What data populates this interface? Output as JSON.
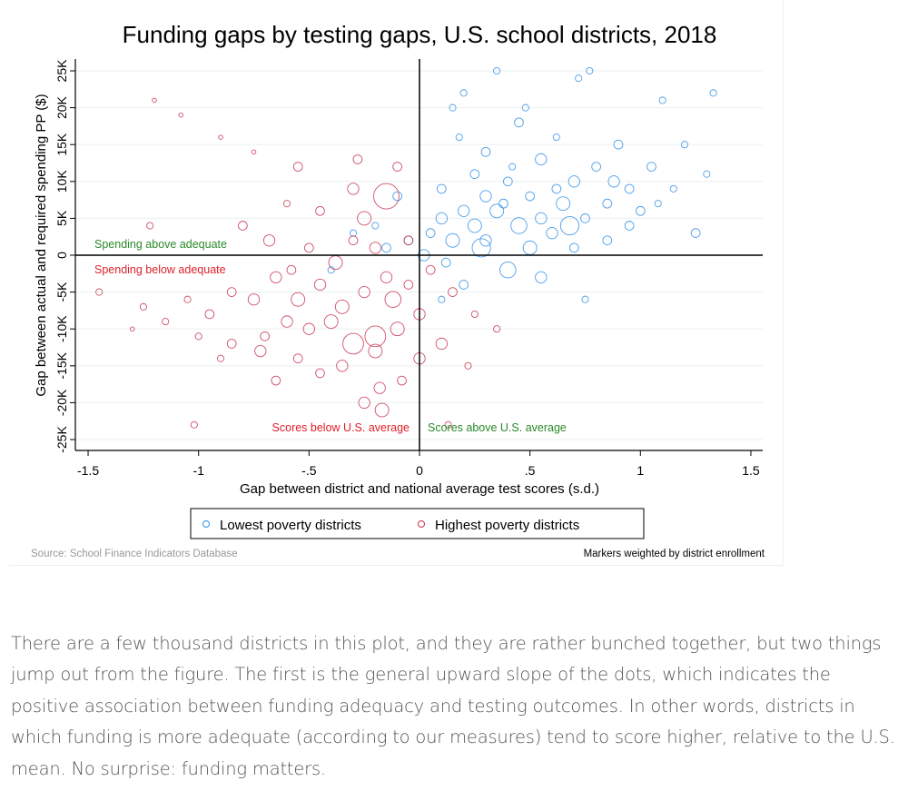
{
  "chart_data": {
    "type": "scatter",
    "title": "Funding gaps by testing gaps, U.S. school districts, 2018",
    "xlabel": "Gap between district and national average test scores (s.d.)",
    "ylabel": "Gap between actual and required spending PP ($)",
    "xlim": [
      -1.55,
      1.55
    ],
    "ylim": [
      -26500,
      26500
    ],
    "xticks": [
      -1.5,
      -1,
      -0.5,
      0,
      0.5,
      1,
      1.5
    ],
    "xtick_labels": [
      "-1.5",
      "-1",
      "-.5",
      "0",
      ".5",
      "1",
      "1.5"
    ],
    "yticks": [
      -25000,
      -20000,
      -15000,
      -10000,
      -5000,
      0,
      5000,
      10000,
      15000,
      20000,
      25000
    ],
    "ytick_labels": [
      "-25K",
      "-20K",
      "-15K",
      "-10K",
      "-5K",
      "0",
      "5K",
      "10K",
      "15K",
      "20K",
      "25K"
    ],
    "grid": "horizontal",
    "legend_position": "bottom",
    "reference_lines": {
      "x": 0,
      "y": 0
    },
    "annotations": {
      "above": "Spending above adequate",
      "below": "Spending below adequate",
      "scores_below": "Scores below U.S. average",
      "scores_above": "Scores above U.S. average"
    },
    "annotation_colors": {
      "green": "#2a8a2a",
      "red": "#e0202a"
    },
    "source": "Source: School Finance Indicators Database",
    "note": "Markers weighted by district enrollment",
    "series": [
      {
        "name": "Lowest poverty districts",
        "color": "#2f8ee8",
        "marker": "hollow-circle",
        "points_x_y_weight": [
          [
            0.35,
            25000,
            2
          ],
          [
            0.77,
            25000,
            2
          ],
          [
            0.72,
            24000,
            2
          ],
          [
            0.2,
            22000,
            2
          ],
          [
            1.33,
            22000,
            2
          ],
          [
            0.15,
            20000,
            2
          ],
          [
            1.1,
            21000,
            2
          ],
          [
            0.45,
            18000,
            3
          ],
          [
            0.62,
            16000,
            2
          ],
          [
            0.9,
            15000,
            3
          ],
          [
            1.2,
            15000,
            2
          ],
          [
            0.3,
            14000,
            3
          ],
          [
            0.55,
            13000,
            4
          ],
          [
            0.8,
            12000,
            3
          ],
          [
            1.05,
            12000,
            3
          ],
          [
            1.3,
            11000,
            2
          ],
          [
            0.25,
            11000,
            3
          ],
          [
            0.4,
            10000,
            3
          ],
          [
            0.7,
            10000,
            4
          ],
          [
            0.95,
            9000,
            3
          ],
          [
            1.15,
            9000,
            2
          ],
          [
            0.1,
            9000,
            3
          ],
          [
            0.3,
            8000,
            4
          ],
          [
            0.5,
            8000,
            3
          ],
          [
            0.65,
            7000,
            5
          ],
          [
            0.85,
            7000,
            3
          ],
          [
            1.0,
            6000,
            3
          ],
          [
            0.2,
            6000,
            4
          ],
          [
            0.35,
            6000,
            5
          ],
          [
            0.55,
            5000,
            4
          ],
          [
            0.75,
            5000,
            3
          ],
          [
            0.95,
            4000,
            3
          ],
          [
            1.25,
            3000,
            3
          ],
          [
            0.1,
            5000,
            4
          ],
          [
            0.25,
            4000,
            5
          ],
          [
            0.45,
            4000,
            6
          ],
          [
            0.6,
            3000,
            4
          ],
          [
            0.85,
            2000,
            3
          ],
          [
            0.05,
            3000,
            3
          ],
          [
            0.15,
            2000,
            5
          ],
          [
            0.3,
            2000,
            4
          ],
          [
            0.5,
            1000,
            5
          ],
          [
            0.7,
            1000,
            3
          ],
          [
            -0.05,
            2000,
            3
          ],
          [
            -0.15,
            1000,
            3
          ],
          [
            -0.3,
            3000,
            2
          ],
          [
            -0.4,
            -2000,
            2
          ],
          [
            0.4,
            -2000,
            6
          ],
          [
            0.55,
            -3000,
            4
          ],
          [
            0.2,
            -4000,
            3
          ],
          [
            0.1,
            -6000,
            2
          ],
          [
            0.75,
            -6000,
            2
          ],
          [
            0.02,
            0,
            4
          ],
          [
            0.38,
            7000,
            3
          ],
          [
            0.62,
            9000,
            3
          ],
          [
            0.18,
            16000,
            2
          ],
          [
            0.48,
            20000,
            2
          ],
          [
            0.88,
            10000,
            4
          ],
          [
            1.08,
            7000,
            2
          ],
          [
            0.28,
            1000,
            7
          ],
          [
            0.12,
            -1000,
            3
          ],
          [
            -0.2,
            4000,
            2
          ],
          [
            0.68,
            4000,
            7
          ],
          [
            0.42,
            12000,
            2
          ],
          [
            -0.1,
            8000,
            3
          ]
        ]
      },
      {
        "name": "Highest poverty districts",
        "color": "#c8324e",
        "marker": "hollow-circle",
        "points_x_y_weight": [
          [
            -1.2,
            21000,
            1
          ],
          [
            -1.08,
            19000,
            1
          ],
          [
            -0.9,
            16000,
            1
          ],
          [
            -0.75,
            14000,
            1
          ],
          [
            -0.28,
            13000,
            3
          ],
          [
            -0.55,
            12000,
            3
          ],
          [
            -0.1,
            12000,
            3
          ],
          [
            -0.3,
            9000,
            4
          ],
          [
            -0.6,
            7000,
            2
          ],
          [
            -0.15,
            8000,
            10
          ],
          [
            -0.45,
            6000,
            3
          ],
          [
            -0.25,
            5000,
            5
          ],
          [
            -0.8,
            4000,
            3
          ],
          [
            -1.22,
            4000,
            2
          ],
          [
            -0.68,
            2000,
            4
          ],
          [
            -0.5,
            1000,
            3
          ],
          [
            -0.2,
            1000,
            4
          ],
          [
            -0.05,
            2000,
            3
          ],
          [
            -1.45,
            -5000,
            2
          ],
          [
            -1.25,
            -7000,
            2
          ],
          [
            -1.05,
            -6000,
            2
          ],
          [
            -0.95,
            -8000,
            3
          ],
          [
            -0.85,
            -5000,
            3
          ],
          [
            -0.75,
            -6000,
            4
          ],
          [
            -0.65,
            -3000,
            4
          ],
          [
            -0.55,
            -6000,
            5
          ],
          [
            -0.45,
            -4000,
            4
          ],
          [
            -0.35,
            -7000,
            5
          ],
          [
            -0.25,
            -5000,
            4
          ],
          [
            -0.15,
            -3000,
            4
          ],
          [
            -0.05,
            -4000,
            3
          ],
          [
            0.05,
            -2000,
            3
          ],
          [
            -0.6,
            -9000,
            4
          ],
          [
            -0.5,
            -10000,
            4
          ],
          [
            -0.4,
            -9000,
            5
          ],
          [
            -0.3,
            -12000,
            8
          ],
          [
            -0.2,
            -11000,
            8
          ],
          [
            -0.1,
            -10000,
            5
          ],
          [
            0.0,
            -8000,
            4
          ],
          [
            -0.7,
            -11000,
            3
          ],
          [
            -0.85,
            -12000,
            3
          ],
          [
            -1.0,
            -11000,
            2
          ],
          [
            -1.15,
            -9000,
            2
          ],
          [
            -0.9,
            -14000,
            2
          ],
          [
            -0.72,
            -13000,
            4
          ],
          [
            -0.55,
            -14000,
            3
          ],
          [
            -0.35,
            -15000,
            4
          ],
          [
            -0.2,
            -13000,
            5
          ],
          [
            0.0,
            -14000,
            4
          ],
          [
            0.1,
            -12000,
            4
          ],
          [
            -0.65,
            -17000,
            3
          ],
          [
            -0.45,
            -16000,
            3
          ],
          [
            -0.18,
            -18000,
            4
          ],
          [
            -0.25,
            -20000,
            4
          ],
          [
            -0.17,
            -21000,
            5
          ],
          [
            -0.08,
            -17000,
            3
          ],
          [
            -1.02,
            -23000,
            2
          ],
          [
            0.15,
            -5000,
            3
          ],
          [
            0.25,
            -8000,
            2
          ],
          [
            0.35,
            -10000,
            2
          ],
          [
            0.22,
            -15000,
            2
          ],
          [
            -0.38,
            -1000,
            5
          ],
          [
            -0.12,
            -6000,
            6
          ],
          [
            -0.58,
            -2000,
            3
          ],
          [
            -0.3,
            2000,
            3
          ],
          [
            -1.3,
            -10000,
            1
          ],
          [
            0.13,
            -23000,
            2
          ]
        ]
      }
    ]
  },
  "article": {
    "paragraph": "There are a few thousand districts in this plot, and they are rather bunched together, but two things jump out from the figure. The first is the general upward slope of the dots, which indicates the positive association between funding adequacy and testing outcomes. In other words, districts in which funding is more adequate (according to our measures) tend to score higher, relative to the U.S. mean. No surprise: funding matters."
  }
}
